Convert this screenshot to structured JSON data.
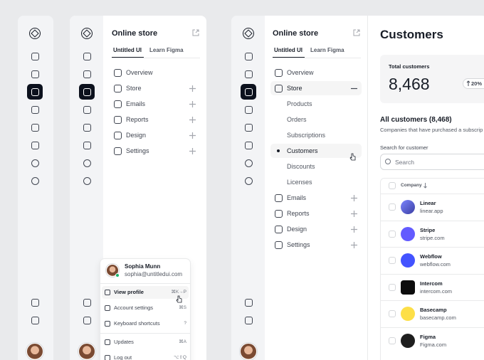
{
  "panel_2": {
    "title": "Online store",
    "tabs": [
      "Untitled UI",
      "Learn Figma"
    ],
    "nav": [
      "Overview",
      "Store",
      "Emails",
      "Reports",
      "Design",
      "Settings"
    ],
    "user": {
      "name": "Sophia Munn",
      "email": "sophia@untitledui.com"
    },
    "menu": [
      {
        "label": "View profile",
        "shortcut": "⌘K→P"
      },
      {
        "label": "Account settings",
        "shortcut": "⌘S"
      },
      {
        "label": "Keyboard shortcuts",
        "shortcut": "?"
      },
      {
        "label": "Updates",
        "shortcut": "⌘A"
      },
      {
        "label": "Log out",
        "shortcut": "⌥⇧Q"
      }
    ]
  },
  "panel_3": {
    "title": "Online store",
    "tabs": [
      "Untitled UI",
      "Learn Figma"
    ],
    "nav_top": [
      "Overview",
      "Store"
    ],
    "store_items": [
      "Products",
      "Orders",
      "Subscriptions",
      "Customers",
      "Discounts",
      "Licenses"
    ],
    "nav_bottom": [
      "Emails",
      "Reports",
      "Design",
      "Settings"
    ]
  },
  "content": {
    "title": "Customers",
    "card": {
      "label": "Total customers",
      "value": "8,468",
      "change": "20%"
    },
    "section_title": "All customers (8,468)",
    "section_subtitle": "Companies that have purchased a subscrip",
    "search_label": "Search for customer",
    "search_placeholder": "Search",
    "table": {
      "header": "Company",
      "rows": [
        {
          "name": "Linear",
          "domain": "linear.app"
        },
        {
          "name": "Stripe",
          "domain": "stripe.com"
        },
        {
          "name": "Webflow",
          "domain": "webflow.com"
        },
        {
          "name": "Intercom",
          "domain": "intercom.com"
        },
        {
          "name": "Basecamp",
          "domain": "basecamp.com"
        },
        {
          "name": "Figma",
          "domain": "Figma.com"
        }
      ]
    }
  }
}
